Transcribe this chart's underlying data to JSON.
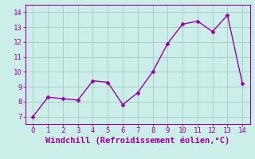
{
  "x": [
    0,
    1,
    2,
    3,
    4,
    5,
    6,
    7,
    8,
    9,
    10,
    11,
    12,
    13,
    14
  ],
  "y": [
    7.0,
    8.3,
    8.2,
    8.1,
    9.4,
    9.3,
    7.8,
    8.6,
    10.0,
    11.9,
    13.2,
    13.4,
    12.7,
    13.8,
    9.2
  ],
  "line_color": "#9900aa",
  "marker_color": "#9900aa",
  "background_color": "#cceee8",
  "grid_color": "#aacccc",
  "xlabel": "Windchill (Refroidissement éolien,°C)",
  "xlabel_color": "#9900aa",
  "tick_color": "#9900aa",
  "spine_color": "#9900aa",
  "ylim": [
    6.5,
    14.5
  ],
  "xlim": [
    -0.5,
    14.5
  ],
  "yticks": [
    7,
    8,
    9,
    10,
    11,
    12,
    13,
    14
  ],
  "xticks": [
    0,
    1,
    2,
    3,
    4,
    5,
    6,
    7,
    8,
    9,
    10,
    11,
    12,
    13,
    14
  ],
  "tick_labelsize": 6.5,
  "xlabel_fontsize": 7.5
}
